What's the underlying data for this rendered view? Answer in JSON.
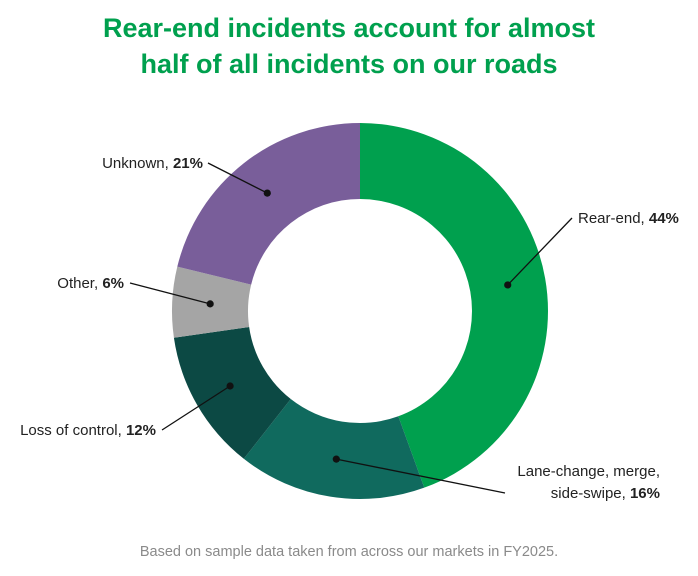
{
  "title_line1": "Rear-end incidents account for almost",
  "title_line2": "half of all incidents on our roads",
  "footnote": "Based on sample data taken from across our markets in FY2025.",
  "colors": {
    "title": "#00a04e",
    "rear_end": "#00a04e",
    "lane_change": "#106a5e",
    "loss_of_control": "#0c4944",
    "other": "#a5a5a5",
    "unknown": "#795e9a"
  },
  "chart_data": {
    "type": "pie",
    "donut": true,
    "title": "Rear-end incidents account for almost half of all incidents on our roads",
    "unit": "%",
    "slices": [
      {
        "label": "Rear-end",
        "value": 44,
        "pct_text": "44%",
        "color": "#00a04e",
        "label_lines": [
          "Rear-end, "
        ]
      },
      {
        "label": "Lane-change, merge, side-swipe",
        "value": 16,
        "pct_text": "16%",
        "color": "#106a5e",
        "label_lines": [
          "Lane-change, merge,",
          "side-swipe, "
        ]
      },
      {
        "label": "Loss of control",
        "value": 12,
        "pct_text": "12%",
        "color": "#0c4944",
        "label_lines": [
          "Loss of control, "
        ]
      },
      {
        "label": "Other",
        "value": 6,
        "pct_text": "6%",
        "color": "#a5a5a5",
        "label_lines": [
          "Other, "
        ]
      },
      {
        "label": "Unknown",
        "value": 21,
        "pct_text": "21%",
        "color": "#795e9a",
        "label_lines": [
          "Unknown, "
        ]
      }
    ]
  }
}
